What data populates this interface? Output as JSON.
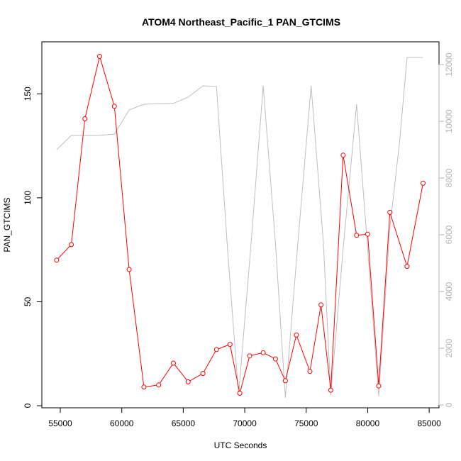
{
  "chart_data": {
    "type": "line",
    "title": "ATOM4 Northeast_Pacific_1 PAN_GTCIMS",
    "xlabel": "UTC Seconds",
    "ylabel": "PAN_GTCIMS",
    "xlim": [
      53500,
      85800
    ],
    "ylim": [
      -1,
      175
    ],
    "ylim_right": [
      -100,
      12800
    ],
    "x_ticks": [
      55000,
      60000,
      65000,
      70000,
      75000,
      80000,
      85000
    ],
    "x_tick_labels": [
      "55000",
      "60000",
      "65000",
      "70000",
      "75000",
      "80000",
      "85000"
    ],
    "y_ticks": [
      0,
      50,
      100,
      150
    ],
    "y_tick_labels": [
      "0",
      "50",
      "100",
      "150"
    ],
    "y_right_ticks": [
      0,
      2000,
      4000,
      6000,
      8000,
      10000,
      12000
    ],
    "y_right_tick_labels": [
      "0",
      "2000",
      "4000",
      "6000",
      "8000",
      "10000",
      "12000"
    ],
    "grid": false,
    "legend": "none",
    "series": [
      {
        "axis": "left",
        "color": "#ff0000",
        "style": "line+circle",
        "x": [
          54700,
          55900,
          57000,
          58200,
          59400,
          60600,
          61800,
          63000,
          64200,
          65400,
          66600,
          67700,
          68800,
          69600,
          70400,
          71500,
          72500,
          73300,
          74200,
          75300,
          76200,
          77000,
          78000,
          79100,
          80000,
          80900,
          81800,
          83200,
          84500
        ],
        "values": [
          70,
          77.5,
          138,
          168,
          144,
          65.5,
          9,
          10,
          20.5,
          11.5,
          15.5,
          27,
          29.5,
          6,
          24,
          25.5,
          22.5,
          12,
          34,
          16.5,
          48.5,
          7.5,
          120.5,
          82,
          82.5,
          9.5,
          93,
          67,
          107
        ]
      },
      {
        "axis": "right",
        "color": "#bebebe",
        "style": "line",
        "x": [
          54700,
          55900,
          57000,
          58200,
          59400,
          60600,
          61800,
          63000,
          64200,
          65400,
          66600,
          67700,
          68600,
          69500,
          70500,
          71500,
          72500,
          73300,
          74300,
          75400,
          76400,
          77000,
          78000,
          79100,
          80000,
          80900,
          81800,
          82600,
          83200,
          84500
        ],
        "values": [
          9000,
          9500,
          9500,
          9500,
          9550,
          10400,
          10600,
          10620,
          10630,
          10850,
          11250,
          11230,
          5500,
          350,
          5600,
          11250,
          5700,
          250,
          5600,
          11250,
          5700,
          350,
          5500,
          10600,
          5500,
          300,
          6250,
          9300,
          12250,
          12250
        ]
      }
    ]
  }
}
